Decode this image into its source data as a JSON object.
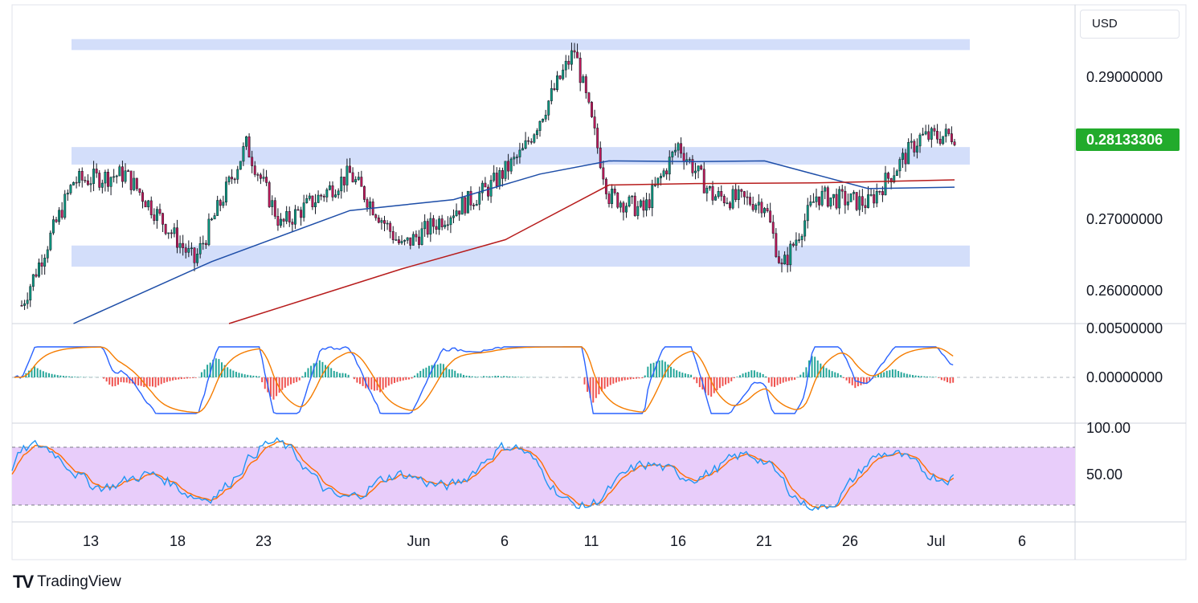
{
  "currency": "USD",
  "last_price_label": "0.28133306",
  "brand": {
    "logo": "TV",
    "name": "TradingView"
  },
  "colors": {
    "up": "#089981",
    "down": "#c2185b",
    "ma_fast": "#1e4ea8",
    "ma_slow": "#b71c1c",
    "zone": "#d3defa",
    "macd": "#2962ff",
    "signal": "#f57c00",
    "hist_up": "#26a69a",
    "hist_down": "#ef5350",
    "rsi_band": "#e8cdfa",
    "rsi_line": "#2196f3",
    "rsi_signal": "#ff6d00",
    "badge": "#22ab2c"
  },
  "chart_data": [
    {
      "type": "candlestick",
      "title": "",
      "price_axis": {
        "ticks": [
          "0.29000000",
          "0.28000000",
          "0.27000000",
          "0.26000000"
        ],
        "ylim": [
          0.2555,
          0.2992
        ]
      },
      "time_axis": {
        "ticks": [
          "13",
          "18",
          "23",
          "Jun",
          "6",
          "11",
          "16",
          "21",
          "26",
          "Jul",
          "6"
        ]
      },
      "support_resistance_zones": [
        {
          "from": 0.293,
          "to": 0.2945
        },
        {
          "from": 0.2773,
          "to": 0.2797
        },
        {
          "from": 0.2633,
          "to": 0.2662
        }
      ],
      "ohlc_key_points": [
        {
          "x": "May 9",
          "close": 0.258
        },
        {
          "x": "May 12",
          "close": 0.275
        },
        {
          "x": "May 15",
          "close": 0.276
        },
        {
          "x": "May 19",
          "close": 0.264
        },
        {
          "x": "May 22",
          "close": 0.28
        },
        {
          "x": "May 24",
          "close": 0.269
        },
        {
          "x": "May 28",
          "close": 0.276
        },
        {
          "x": "May 31",
          "close": 0.266
        },
        {
          "x": "Jun 3",
          "close": 0.271
        },
        {
          "x": "Jun 5",
          "close": 0.274
        },
        {
          "x": "Jun 7",
          "close": 0.279
        },
        {
          "x": "Jun 10",
          "close": 0.293
        },
        {
          "x": "Jun 12",
          "close": 0.273
        },
        {
          "x": "Jun 14",
          "close": 0.271
        },
        {
          "x": "Jun 16",
          "close": 0.28
        },
        {
          "x": "Jun 18",
          "close": 0.273
        },
        {
          "x": "Jun 21",
          "close": 0.272
        },
        {
          "x": "Jun 22",
          "close": 0.263
        },
        {
          "x": "Jun 24",
          "close": 0.273
        },
        {
          "x": "Jun 27",
          "close": 0.272
        },
        {
          "x": "Jun 30",
          "close": 0.281
        },
        {
          "x": "Jul 2",
          "close": 0.28133306
        }
      ],
      "moving_averages": [
        {
          "period": "fast",
          "points": [
            [
              "May 12",
              0.2555
            ],
            [
              "May 20",
              0.264
            ],
            [
              "May 28",
              0.271
            ],
            [
              "Jun 3",
              0.2725
            ],
            [
              "Jun 8",
              0.276
            ],
            [
              "Jun 12",
              0.2778
            ],
            [
              "Jun 17",
              0.2777
            ],
            [
              "Jun 21",
              0.2778
            ],
            [
              "Jun 27",
              0.274
            ],
            [
              "Jul 2",
              0.2742
            ]
          ]
        },
        {
          "period": "slow",
          "points": [
            [
              "May 21",
              0.2555
            ],
            [
              "May 31",
              0.263
            ],
            [
              "Jun 6",
              0.267
            ],
            [
              "Jun 12",
              0.2745
            ],
            [
              "Jun 17",
              0.2747
            ],
            [
              "Jun 24",
              0.2748
            ],
            [
              "Jul 2",
              0.2752
            ]
          ]
        }
      ]
    },
    {
      "type": "macd",
      "axis": {
        "ticks": [
          "0.00500000",
          "0.00000000"
        ]
      }
    },
    {
      "type": "rsi",
      "axis": {
        "ticks": [
          "100.00",
          "50.00"
        ]
      },
      "band": [
        20,
        80
      ]
    }
  ]
}
